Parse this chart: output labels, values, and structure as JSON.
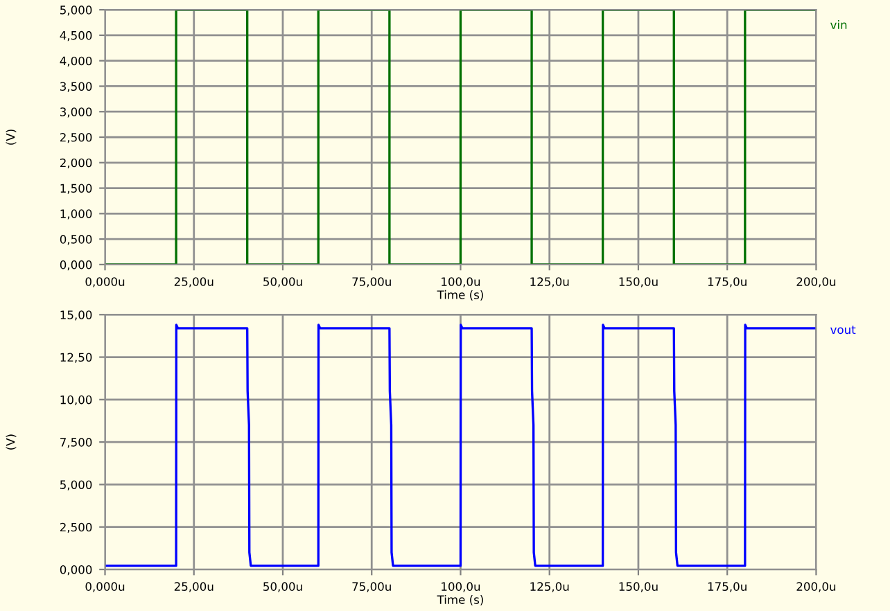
{
  "chart_data": [
    {
      "type": "line",
      "xlabel": "Time (s)",
      "ylabel": "(V)",
      "grid": true,
      "legend": "top right",
      "marker": "none",
      "line_style": "solid",
      "xlim": [
        0,
        200
      ],
      "xticks": [
        {
          "value": 0,
          "label": "0,000u"
        },
        {
          "value": 25,
          "label": "25,00u"
        },
        {
          "value": 50,
          "label": "50,00u"
        },
        {
          "value": 75,
          "label": "75,00u"
        },
        {
          "value": 100,
          "label": "100,0u"
        },
        {
          "value": 125,
          "label": "125,0u"
        },
        {
          "value": 150,
          "label": "150,0u"
        },
        {
          "value": 175,
          "label": "175,0u"
        },
        {
          "value": 200,
          "label": "200,0u"
        }
      ],
      "ylim": [
        0,
        5
      ],
      "yticks": [
        {
          "value": 0,
          "label": "0,000"
        },
        {
          "value": 0.5,
          "label": "0,500"
        },
        {
          "value": 1,
          "label": "1,000"
        },
        {
          "value": 1.5,
          "label": "1,500"
        },
        {
          "value": 2,
          "label": "2,000"
        },
        {
          "value": 2.5,
          "label": "2,500"
        },
        {
          "value": 3,
          "label": "3,000"
        },
        {
          "value": 3.5,
          "label": "3,500"
        },
        {
          "value": 4,
          "label": "4,000"
        },
        {
          "value": 4.5,
          "label": "4,500"
        },
        {
          "value": 5,
          "label": "5,000"
        }
      ],
      "series": [
        {
          "name": "vin",
          "color": "#007000",
          "x": [
            0,
            20,
            20,
            40,
            40,
            60,
            60,
            80,
            80,
            100,
            100,
            120,
            120,
            140,
            140,
            160,
            160,
            180,
            180,
            200
          ],
          "values": [
            0,
            0,
            5,
            5,
            0,
            0,
            5,
            5,
            0,
            0,
            5,
            5,
            0,
            0,
            5,
            5,
            0,
            0,
            5,
            5
          ]
        }
      ]
    },
    {
      "type": "line",
      "xlabel": "Time (s)",
      "ylabel": "(V)",
      "grid": true,
      "legend": "top right",
      "marker": "none",
      "line_style": "solid",
      "xlim": [
        0,
        200
      ],
      "xticks": [
        {
          "value": 0,
          "label": "0,000u"
        },
        {
          "value": 25,
          "label": "25,00u"
        },
        {
          "value": 50,
          "label": "50,00u"
        },
        {
          "value": 75,
          "label": "75,00u"
        },
        {
          "value": 100,
          "label": "100,0u"
        },
        {
          "value": 125,
          "label": "125,0u"
        },
        {
          "value": 150,
          "label": "150,0u"
        },
        {
          "value": 175,
          "label": "175,0u"
        },
        {
          "value": 200,
          "label": "200,0u"
        }
      ],
      "ylim": [
        0,
        15
      ],
      "yticks": [
        {
          "value": 0,
          "label": "0,000"
        },
        {
          "value": 2.5,
          "label": "2,500"
        },
        {
          "value": 5,
          "label": "5,000"
        },
        {
          "value": 7.5,
          "label": "7,500"
        },
        {
          "value": 10,
          "label": "10,00"
        },
        {
          "value": 12.5,
          "label": "12,50"
        },
        {
          "value": 15,
          "label": "15,00"
        }
      ],
      "series": [
        {
          "name": "vout",
          "color": "#0000ff",
          "x": [
            0,
            20,
            20.05,
            20.5,
            40,
            40.1,
            40.5,
            40.6,
            41,
            60,
            60.05,
            60.5,
            80,
            80.1,
            80.5,
            80.6,
            81,
            100,
            100.05,
            100.5,
            120,
            120.1,
            120.5,
            120.6,
            121,
            140,
            140.05,
            140.5,
            160,
            160.1,
            160.5,
            160.6,
            161,
            180,
            180.05,
            180.5,
            200
          ],
          "values": [
            0.22,
            0.22,
            14.4,
            14.2,
            14.2,
            10.5,
            8.5,
            1,
            0.22,
            0.22,
            14.4,
            14.2,
            14.2,
            10.5,
            8.5,
            1,
            0.22,
            0.22,
            14.4,
            14.2,
            14.2,
            10.5,
            8.5,
            1,
            0.22,
            0.22,
            14.4,
            14.2,
            14.2,
            10.5,
            8.5,
            1,
            0.22,
            0.22,
            14.4,
            14.2,
            14.2
          ]
        }
      ]
    }
  ]
}
